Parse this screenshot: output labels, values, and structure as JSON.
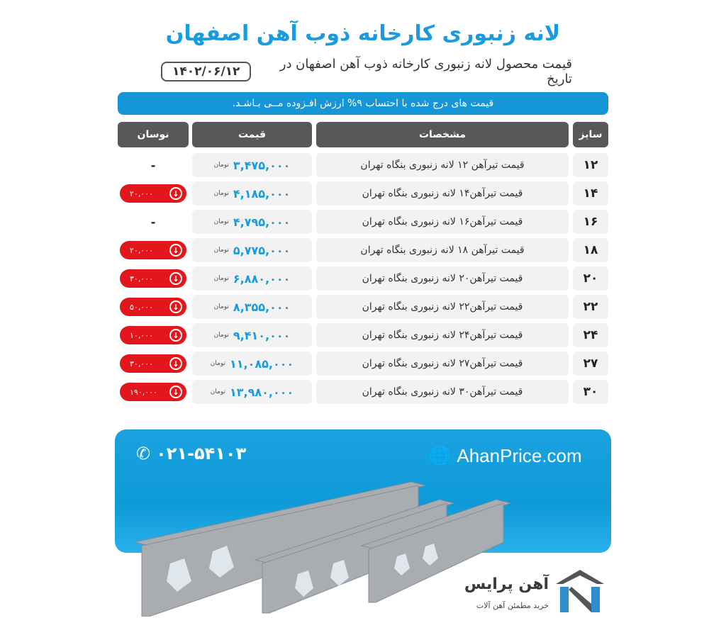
{
  "title": "لانه زنبوری کارخانه ذوب آهن اصفهان",
  "subtitle": "قیمت محصول لانه زنبوری کارخانه ذوب آهن اصفهان در تاریخ",
  "date": "۱۴۰۲/۰۶/۱۲",
  "note": "قیمت های درج شده با احتساب ۹% ارزش افـزوده مــی بـاشـد.",
  "headers": {
    "size": "سایز",
    "spec": "مشخصات",
    "price": "قیمت",
    "change": "نوسان"
  },
  "unit": "تومان",
  "rows": [
    {
      "size": "۱۲",
      "spec": "قیمت تیرآهن ۱۲ لانه زنبوری بنگاه تهران",
      "price": "۳,۴۷۵,۰۰۰",
      "change": "-"
    },
    {
      "size": "۱۴",
      "spec": "قیمت تیرآهن۱۴ لانه زنبوری بنگاه تهران",
      "price": "۴,۱۸۵,۰۰۰",
      "change": "۲۰,۰۰۰"
    },
    {
      "size": "۱۶",
      "spec": "قیمت تیرآهن۱۶ لانه زنبوری بنگاه تهران",
      "price": "۴,۷۹۵,۰۰۰",
      "change": "-"
    },
    {
      "size": "۱۸",
      "spec": "قیمت تیرآهن ۱۸ لانه زنبوری بنگاه تهران",
      "price": "۵,۷۷۵,۰۰۰",
      "change": "۲۰,۰۰۰"
    },
    {
      "size": "۲۰",
      "spec": "قیمت تیرآهن۲۰ لانه زنبوری بنگاه تهران",
      "price": "۶,۸۸۰,۰۰۰",
      "change": "۳۰,۰۰۰"
    },
    {
      "size": "۲۲",
      "spec": "قیمت تیرآهن۲۲ لانه زنبوری بنگاه تهران",
      "price": "۸,۳۵۵,۰۰۰",
      "change": "۵۰,۰۰۰"
    },
    {
      "size": "۲۴",
      "spec": "قیمت تیرآهن۲۴ لانه زنبوری بنگاه تهران",
      "price": "۹,۴۱۰,۰۰۰",
      "change": "۱۰,۰۰۰"
    },
    {
      "size": "۲۷",
      "spec": "قیمت تیرآهن۲۷ لانه زنبوری بنگاه تهران",
      "price": "۱۱,۰۸۵,۰۰۰",
      "change": "۳۰,۰۰۰"
    },
    {
      "size": "۳۰",
      "spec": "قیمت تیرآهن۳۰ لانه زنبوری بنگاه تهران",
      "price": "۱۳,۹۸۰,۰۰۰",
      "change": "۱۹۰,۰۰۰"
    }
  ],
  "colors": {
    "accent": "#1a9be0",
    "header": "#58585a",
    "down": "#e3161d",
    "cell": "#f2f2f3"
  },
  "banner": {
    "phone": "۰۲۱-۵۴۱۰۳",
    "site": "AhanPrice.com",
    "phone_icon": "phone-icon",
    "site_icon": "globe-icon"
  },
  "logo": {
    "name": "آهن پرایس",
    "tagline": "خرید مطمئن آهن آلات"
  }
}
